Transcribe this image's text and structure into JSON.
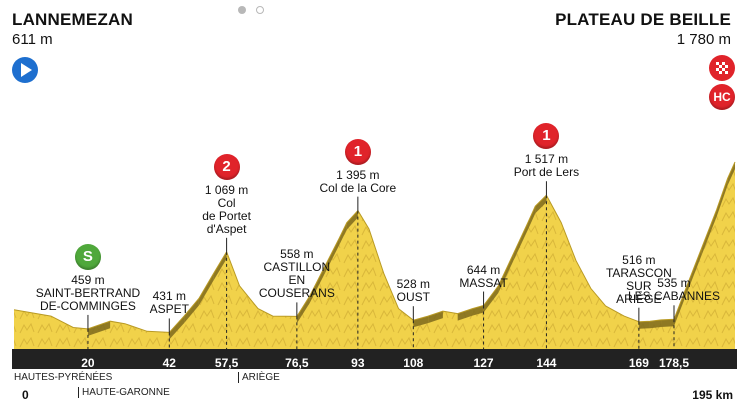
{
  "start": {
    "name": "LANNEMEZAN",
    "altitude": "611 m"
  },
  "finish": {
    "name": "PLATEAU DE BEILLE",
    "altitude": "1 780 m",
    "category": "HC"
  },
  "points": [
    {
      "lines": [
        "459 m",
        "SAINT-BERTRAND",
        "DE-COMMINGES"
      ],
      "km": 20,
      "km_label": "20",
      "badge": "S",
      "badge_color": "#4fa83b"
    },
    {
      "lines": [
        "431 m",
        "ASPET"
      ],
      "km": 42,
      "km_label": "42"
    },
    {
      "lines": [
        "1 069 m",
        "Col",
        "de Portet",
        "d'Aspet"
      ],
      "km": 57.5,
      "km_label": "57,5",
      "badge": "2",
      "badge_color": "#e0232a"
    },
    {
      "lines": [
        "558 m",
        "CASTILLON",
        "EN",
        "COUSERANS"
      ],
      "km": 76.5,
      "km_label": "76,5"
    },
    {
      "lines": [
        "1 395 m",
        "Col de la Core"
      ],
      "km": 93,
      "km_label": "93",
      "badge": "1",
      "badge_color": "#e0232a"
    },
    {
      "lines": [
        "528 m",
        "OUST"
      ],
      "km": 108,
      "km_label": "108"
    },
    {
      "lines": [
        "644 m",
        "MASSAT"
      ],
      "km": 127,
      "km_label": "127"
    },
    {
      "lines": [
        "1 517 m",
        "Port de Lers"
      ],
      "km": 144,
      "km_label": "144",
      "badge": "1",
      "badge_color": "#e0232a"
    },
    {
      "lines": [
        "516 m",
        "TARASCON",
        "SUR",
        "ARIÈGE"
      ],
      "km": 169,
      "km_label": "169"
    },
    {
      "lines": [
        "535 m",
        "LES CABANNES"
      ],
      "km": 178.5,
      "km_label": "178,5"
    }
  ],
  "axis": {
    "start_label": "0",
    "end_label": "195 km",
    "total_km": 195
  },
  "regions": [
    "HAUTES-PYRÉNÉES",
    "HAUTE-GARONNE",
    "ARIÈGE"
  ],
  "profile": [
    [
      0,
      611
    ],
    [
      10,
      560
    ],
    [
      16,
      470
    ],
    [
      20,
      459
    ],
    [
      26,
      520
    ],
    [
      30,
      500
    ],
    [
      36,
      440
    ],
    [
      42,
      431
    ],
    [
      46,
      560
    ],
    [
      50,
      700
    ],
    [
      54,
      900
    ],
    [
      57.5,
      1069
    ],
    [
      61,
      800
    ],
    [
      66,
      620
    ],
    [
      70,
      560
    ],
    [
      76.5,
      558
    ],
    [
      80,
      720
    ],
    [
      84,
      950
    ],
    [
      88,
      1180
    ],
    [
      90,
      1300
    ],
    [
      93,
      1395
    ],
    [
      96,
      1250
    ],
    [
      100,
      900
    ],
    [
      104,
      620
    ],
    [
      108,
      528
    ],
    [
      112,
      560
    ],
    [
      116,
      600
    ],
    [
      120,
      580
    ],
    [
      124,
      620
    ],
    [
      127,
      644
    ],
    [
      131,
      800
    ],
    [
      135,
      1050
    ],
    [
      139,
      1300
    ],
    [
      141,
      1430
    ],
    [
      144,
      1517
    ],
    [
      148,
      1300
    ],
    [
      152,
      1000
    ],
    [
      156,
      780
    ],
    [
      160,
      640
    ],
    [
      165,
      560
    ],
    [
      169,
      516
    ],
    [
      172,
      520
    ],
    [
      175,
      530
    ],
    [
      178.5,
      535
    ],
    [
      182,
      800
    ],
    [
      186,
      1100
    ],
    [
      190,
      1400
    ],
    [
      193,
      1650
    ],
    [
      195,
      1780
    ]
  ],
  "colors": {
    "terrain": "#f1d24a",
    "terrain_dark": "#b99a24",
    "slope": "#7e6a1c",
    "base": "#222222"
  }
}
